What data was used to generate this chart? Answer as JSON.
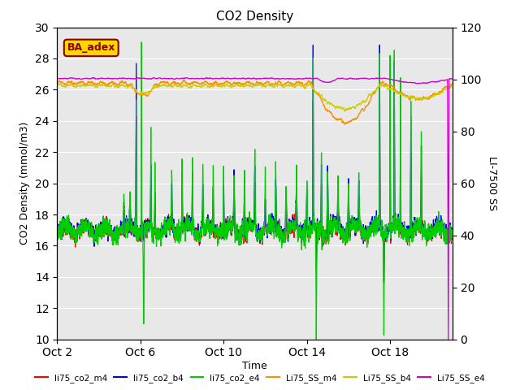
{
  "title": "CO2 Density",
  "xlabel": "Time",
  "ylabel_left": "CO2 Density (mmol/m3)",
  "ylabel_right": "LI-7500 SS",
  "ylim_left": [
    10,
    30
  ],
  "ylim_right": [
    0,
    120
  ],
  "annotation": "BA_adex",
  "annotation_color": "#8B0000",
  "annotation_bg": "#FFD700",
  "x_ticks_labels": [
    "Oct 2",
    "Oct 6",
    "Oct 10",
    "Oct 14",
    "Oct 18"
  ],
  "x_ticks_days": [
    0,
    4,
    8,
    12,
    16
  ],
  "y_left_ticks": [
    10,
    12,
    14,
    16,
    18,
    20,
    22,
    24,
    26,
    28,
    30
  ],
  "y_right_ticks": [
    0,
    20,
    40,
    60,
    80,
    100,
    120
  ],
  "colors": {
    "co2_m4": "#FF0000",
    "co2_b4": "#0000FF",
    "co2_e4": "#00CC00",
    "ss_m4": "#FF8C00",
    "ss_b4": "#CCCC00",
    "ss_e4": "#CC00CC"
  },
  "legend": [
    {
      "label": "li75_co2_m4",
      "color": "#FF0000"
    },
    {
      "label": "li75_co2_b4",
      "color": "#0000FF"
    },
    {
      "label": "li75_co2_e4",
      "color": "#00CC00"
    },
    {
      "label": "Li75_SS_m4",
      "color": "#FF8C00"
    },
    {
      "label": "Li75_SS_b4",
      "color": "#CCCC00"
    },
    {
      "label": "Li75_SS_e4",
      "color": "#CC00CC"
    }
  ],
  "background_color": "#E8E8E8",
  "total_days": 19,
  "N": 3000
}
